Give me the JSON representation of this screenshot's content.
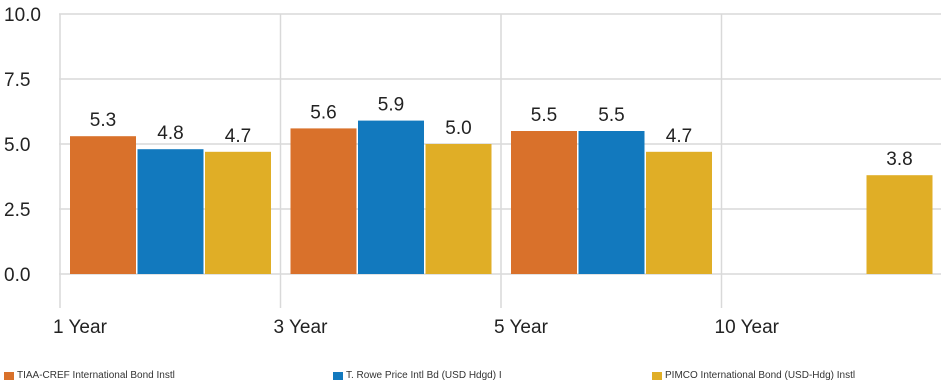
{
  "chart_data": {
    "type": "bar",
    "categories": [
      "1 Year",
      "3 Year",
      "5 Year",
      "10 Year"
    ],
    "series": [
      {
        "name": "TIAA-CREF International Bond Instl",
        "color": "#d9712b",
        "values": [
          5.3,
          5.6,
          5.5,
          null
        ],
        "labels": [
          "5.3",
          "5.6",
          "5.5",
          ""
        ]
      },
      {
        "name": "T. Rowe Price Intl Bd (USD Hdgd) I",
        "color": "#1279be",
        "values": [
          4.8,
          5.9,
          5.5,
          null
        ],
        "labels": [
          "4.8",
          "5.9",
          "5.5",
          ""
        ]
      },
      {
        "name": "PIMCO International Bond (USD-Hdg) Instl",
        "color": "#e0ae26",
        "values": [
          4.7,
          5.0,
          4.7,
          3.8
        ],
        "labels": [
          "4.7",
          "5.0",
          "4.7",
          "3.8"
        ]
      }
    ],
    "y_ticks": [
      "10.0",
      "7.5",
      "5.0",
      "2.5",
      "0.0"
    ],
    "ylim": [
      0,
      10
    ],
    "grid": true,
    "legend_position": "bottom",
    "title": "",
    "xlabel": "",
    "ylabel": ""
  }
}
